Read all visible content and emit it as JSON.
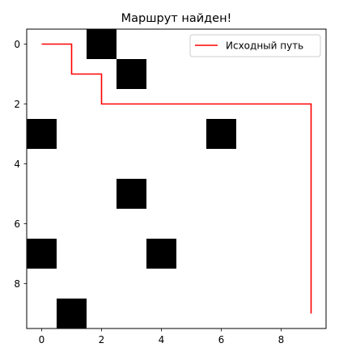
{
  "chart_data": {
    "type": "heatmap",
    "title": "Маршрут найден!",
    "xlabel": "",
    "ylabel": "",
    "xlim": [
      -0.5,
      9.5
    ],
    "ylim": [
      9.5,
      -0.5
    ],
    "y_axis_inverted": true,
    "grid": false,
    "xticks": [
      0,
      2,
      4,
      6,
      8
    ],
    "yticks": [
      0,
      2,
      4,
      6,
      8
    ],
    "grid_size": [
      10,
      10
    ],
    "obstacles": [
      {
        "x": 2,
        "y": 0
      },
      {
        "x": 3,
        "y": 1
      },
      {
        "x": 0,
        "y": 3
      },
      {
        "x": 6,
        "y": 3
      },
      {
        "x": 3,
        "y": 5
      },
      {
        "x": 0,
        "y": 7
      },
      {
        "x": 4,
        "y": 7
      },
      {
        "x": 1,
        "y": 9
      }
    ],
    "obstacle_color": "#000000",
    "background_color": "#ffffff",
    "series": [
      {
        "name": "Исходный путь",
        "color": "#ff0000",
        "points": [
          {
            "x": 0,
            "y": 0
          },
          {
            "x": 1,
            "y": 0
          },
          {
            "x": 1,
            "y": 1
          },
          {
            "x": 2,
            "y": 1
          },
          {
            "x": 2,
            "y": 2
          },
          {
            "x": 9,
            "y": 2
          },
          {
            "x": 9,
            "y": 9
          }
        ]
      }
    ],
    "legend": {
      "placement": "top-right"
    }
  }
}
